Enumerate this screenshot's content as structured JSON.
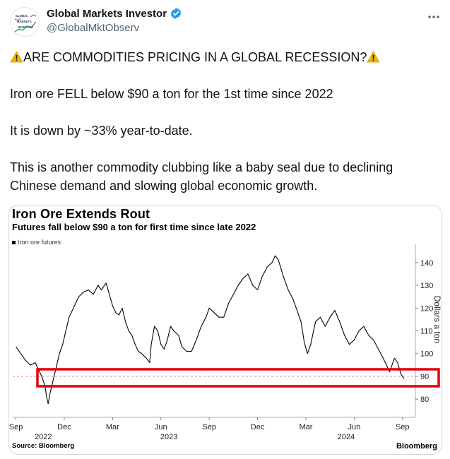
{
  "header": {
    "display_name": "Global Markets Investor",
    "handle": "@GlobalMktObserv",
    "avatar_lines": [
      "GLOBAL",
      "MARKETS",
      "INVESTOR"
    ]
  },
  "tweet": {
    "line1": "ARE COMMODITIES PRICING IN A GLOBAL RECESSION?",
    "line2": "Iron ore FELL below $90 a ton for the 1st time since 2022",
    "line3": "It is down by ~33% year-to-date.",
    "line4": "This is another commodity clubbing like a baby seal due to declining Chinese demand and slowing global economic growth."
  },
  "colors": {
    "text": "#0f1419",
    "muted": "#536471",
    "verified": "#1d9bf0",
    "highlight_box": "#e3000f",
    "reference_line": "#e06070"
  },
  "chart_data": {
    "type": "line",
    "title": "Iron Ore Extends Rout",
    "subtitle": "Futures fall below $90 a ton for first time since late 2022",
    "source": "Source: Bloomberg",
    "brand": "Bloomberg",
    "ylabel": "Dollars a ton",
    "legend": "Iron ore futures",
    "legend_position": "top-left",
    "ylim": [
      72,
      148
    ],
    "yticks": [
      80,
      90,
      100,
      110,
      120,
      130,
      140
    ],
    "reference_value": 90,
    "grid": false,
    "xticks": [
      {
        "label": "Sep",
        "t": 0
      },
      {
        "label": "Dec",
        "t": 3
      },
      {
        "label": "Mar",
        "t": 6
      },
      {
        "label": "Jun",
        "t": 9
      },
      {
        "label": "Sep",
        "t": 12
      },
      {
        "label": "Dec",
        "t": 15
      },
      {
        "label": "Mar",
        "t": 18
      },
      {
        "label": "Jun",
        "t": 21
      },
      {
        "label": "Sep",
        "t": 24
      }
    ],
    "years": [
      {
        "label": "2022",
        "t": 1.7
      },
      {
        "label": "2023",
        "t": 9.5
      },
      {
        "label": "2024",
        "t": 20.5
      }
    ],
    "series": [
      {
        "name": "Iron ore futures",
        "points": [
          [
            0.0,
            103
          ],
          [
            0.3,
            100
          ],
          [
            0.6,
            97
          ],
          [
            0.9,
            95
          ],
          [
            1.2,
            96
          ],
          [
            1.4,
            93
          ],
          [
            1.6,
            90
          ],
          [
            1.8,
            86
          ],
          [
            1.9,
            81
          ],
          [
            2.0,
            78
          ],
          [
            2.1,
            82
          ],
          [
            2.3,
            88
          ],
          [
            2.5,
            94
          ],
          [
            2.7,
            100
          ],
          [
            2.9,
            104
          ],
          [
            3.1,
            110
          ],
          [
            3.3,
            116
          ],
          [
            3.5,
            119
          ],
          [
            3.7,
            122
          ],
          [
            3.9,
            125
          ],
          [
            4.2,
            127
          ],
          [
            4.5,
            128
          ],
          [
            4.8,
            126
          ],
          [
            5.1,
            130
          ],
          [
            5.3,
            128
          ],
          [
            5.6,
            131
          ],
          [
            5.8,
            126
          ],
          [
            6.0,
            121
          ],
          [
            6.2,
            118
          ],
          [
            6.4,
            117
          ],
          [
            6.6,
            120
          ],
          [
            6.8,
            114
          ],
          [
            7.0,
            110
          ],
          [
            7.2,
            108
          ],
          [
            7.4,
            104
          ],
          [
            7.6,
            101
          ],
          [
            7.8,
            100
          ],
          [
            8.1,
            98
          ],
          [
            8.3,
            96
          ],
          [
            8.4,
            104
          ],
          [
            8.6,
            112
          ],
          [
            8.8,
            110
          ],
          [
            9.0,
            104
          ],
          [
            9.2,
            102
          ],
          [
            9.4,
            106
          ],
          [
            9.6,
            112
          ],
          [
            9.8,
            110
          ],
          [
            10.1,
            108
          ],
          [
            10.3,
            103
          ],
          [
            10.6,
            101
          ],
          [
            10.9,
            101
          ],
          [
            11.2,
            106
          ],
          [
            11.5,
            112
          ],
          [
            11.8,
            116
          ],
          [
            12.0,
            120
          ],
          [
            12.3,
            118
          ],
          [
            12.6,
            116
          ],
          [
            12.9,
            116
          ],
          [
            13.2,
            122
          ],
          [
            13.5,
            126
          ],
          [
            13.8,
            130
          ],
          [
            14.1,
            133
          ],
          [
            14.4,
            135
          ],
          [
            14.7,
            130
          ],
          [
            15.0,
            128
          ],
          [
            15.3,
            134
          ],
          [
            15.6,
            138
          ],
          [
            15.9,
            140
          ],
          [
            16.1,
            143
          ],
          [
            16.3,
            141
          ],
          [
            16.6,
            134
          ],
          [
            16.9,
            128
          ],
          [
            17.2,
            124
          ],
          [
            17.5,
            118
          ],
          [
            17.7,
            114
          ],
          [
            17.9,
            105
          ],
          [
            18.1,
            100
          ],
          [
            18.3,
            104
          ],
          [
            18.6,
            114
          ],
          [
            18.9,
            116
          ],
          [
            19.2,
            112
          ],
          [
            19.5,
            116
          ],
          [
            19.8,
            119
          ],
          [
            20.1,
            114
          ],
          [
            20.4,
            108
          ],
          [
            20.7,
            104
          ],
          [
            21.0,
            106
          ],
          [
            21.3,
            110
          ],
          [
            21.6,
            112
          ],
          [
            21.9,
            108
          ],
          [
            22.2,
            106
          ],
          [
            22.5,
            102
          ],
          [
            22.8,
            98
          ],
          [
            23.0,
            95
          ],
          [
            23.2,
            92
          ],
          [
            23.5,
            98
          ],
          [
            23.7,
            96
          ],
          [
            23.9,
            91
          ],
          [
            24.1,
            89
          ]
        ]
      }
    ]
  }
}
